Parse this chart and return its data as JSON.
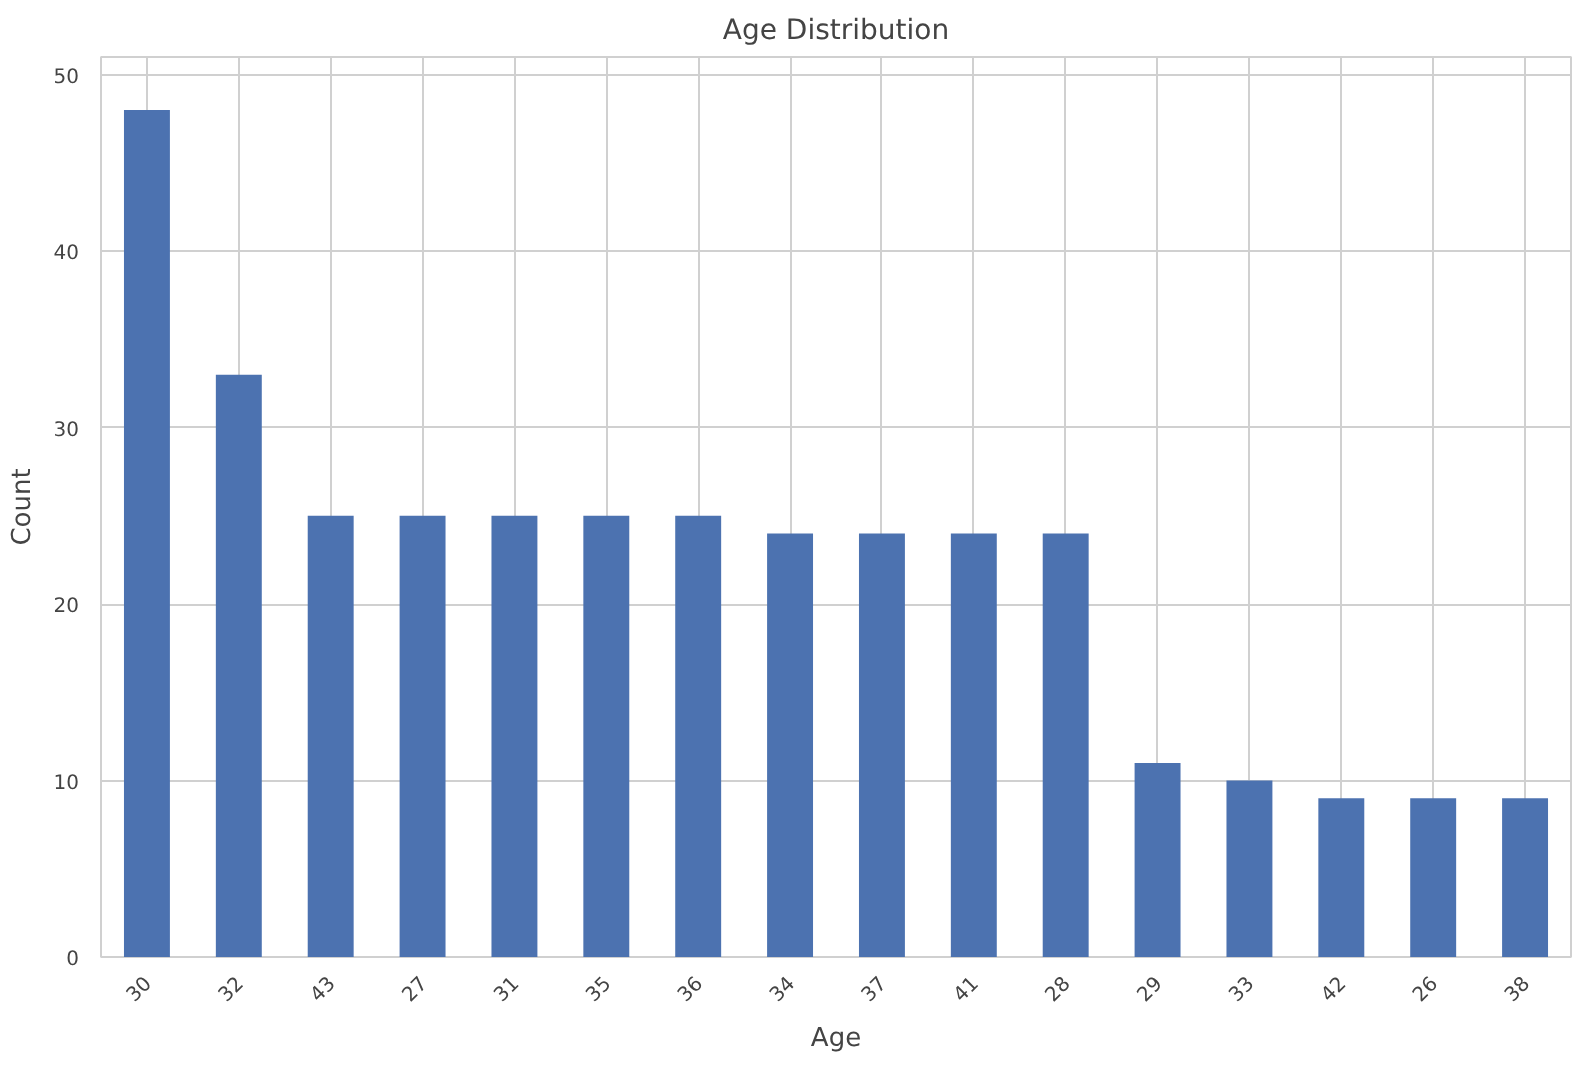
{
  "chart_data": {
    "type": "bar",
    "title": "Age Distribution",
    "xlabel": "Age",
    "ylabel": "Count",
    "categories": [
      "30",
      "32",
      "43",
      "27",
      "31",
      "35",
      "36",
      "34",
      "37",
      "41",
      "28",
      "29",
      "33",
      "42",
      "26",
      "38"
    ],
    "values": [
      48,
      33,
      25,
      25,
      25,
      25,
      25,
      24,
      24,
      24,
      24,
      11,
      10,
      9,
      9,
      9
    ],
    "color": "#4c72b0",
    "ylim": [
      0,
      51
    ],
    "yticks": [
      0,
      10,
      20,
      30,
      40,
      50
    ],
    "grid": true
  }
}
